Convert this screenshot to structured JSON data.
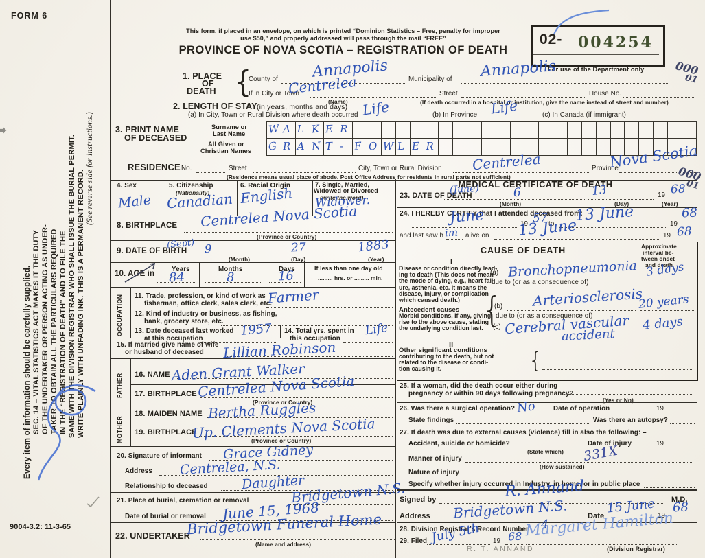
{
  "form": {
    "label": "FORM 6",
    "code": "9004-3.2: 11-3-65"
  },
  "icons": {
    "margin_arrow": "➡",
    "brace": "{",
    "check": "✓"
  },
  "header": {
    "notice1": "This form, if placed in an envelope, on which is printed “Dominion Statistics – Free, penalty for improper",
    "notice2": "use $50,” and properly addressed will pass through the mail “FREE”",
    "title": "PROVINCE OF NOVA SCOTIA – REGISTRATION OF DEATH",
    "dept_prefix": "02-",
    "dept_number": "004254",
    "dept_caption": "For use of the Department only"
  },
  "annotations": {
    "corner1a": "000",
    "corner1b": "01",
    "corner2a": "000",
    "corner2b": "01"
  },
  "sidebar": {
    "supplied": "Every item of information should be carefully supplied.",
    "lines": [
      "SEC. 14 – VITAL STATISTICS ACT MAKES IT THE DUTY",
      "OF THE UNDERTAKER OR PERSON ACTING AS UNDER-",
      "TAKER TO OBTAIN ALL THE PARTICULARS REQUIRED",
      "IN THE “REGISTRATION OF DEATH” AND TO FILE THE",
      "SAME WITH THE DIVISION REGISTRAR WHO SHALL ISSUE THE BURIAL PERMIT.",
      "WRITE PLAINLY WITH UNFADING INK. THIS IS A PERMANENT RECORD."
    ],
    "note": "(See reverse side for instructions.)"
  },
  "place": {
    "num": "1. PLACE",
    "of": "OF",
    "death": "DEATH",
    "county_label": "County of",
    "county": "Annapolis",
    "municipality_label": "Municipality of",
    "municipality": "Annapolis",
    "city_label": "If in City or Town",
    "city": "Centrelea",
    "name_sub": "(Name)",
    "street_label": "Street",
    "hospital_note": "(If death occurred in a hospital or institution, give the name instead of street and number)",
    "house_label": "House No."
  },
  "stay": {
    "title": "2. LENGTH OF STAY",
    "title_sub": "(in years, months and days)",
    "a_label": "(a) In City, Town or Rural Division where death occurred",
    "a": "Life",
    "b_label": "(b) In Province",
    "b": "Life",
    "c_label": "(c) In Canada (if immigrant)"
  },
  "print_name": {
    "title1": "3. PRINT NAME",
    "title2": "OF DECEASED",
    "surname_label1": "Surname or",
    "surname_label2": "Last Name",
    "given_label1": "All Given or",
    "given_label2": "Christian Names",
    "surname": "WALKER",
    "given": "GRANT-FOWLER"
  },
  "residence": {
    "title": "RESIDENCE",
    "no_label": "No.",
    "street_label": "Street",
    "city_label": "City, Town or Rural Division",
    "city": "Centrelea",
    "province_label": "Province",
    "province": "Nova Scotia",
    "note": "(Residence means usual place of abode. Post Office Address for residents in rural parts not sufficient)"
  },
  "personal": {
    "sex_label": "4. Sex",
    "sex": "Male",
    "citizenship_label": "5. Citizenship",
    "citizenship_sub": "(Nationality)",
    "citizenship": "Canadian",
    "racial_label": "6. Racial Origin",
    "racial": "English",
    "marital_label1": "7. Single, Married,",
    "marital_label2": "Widowed or Divorced",
    "marital_sub": "(write the word)",
    "marital": "Widower.",
    "birthplace_label": "8. BIRTHPLACE",
    "birthplace": "Centrelea Nova Scotia",
    "prov_country": "(Province or Country)",
    "dob_label": "9. DATE OF BIRTH",
    "dob_month_hw": "(Sept)",
    "dob_month_num": "9",
    "dob_day": "27",
    "dob_year": "1883",
    "month_sub": "(Month)",
    "day_sub": "(Day)",
    "year_sub": "(Year)",
    "age_label": "10. AGE in",
    "years_label": "Years",
    "months_label": "Months",
    "days_label": "Days",
    "less_label": "If less than one day old",
    "hrs_min": "......... hrs. or ......... min.",
    "age_years": "84",
    "age_months": "8",
    "age_days": "16"
  },
  "occupation": {
    "side": "OCCUPATION",
    "q11a": "11. Trade, profession, or kind of work as",
    "q11b": "fisherman, office clerk, sales clerk, etc.",
    "trade": "Farmer",
    "q12a": "12. Kind of industry or business, as fishing,",
    "q12b": "bank, grocery store, etc.",
    "q13a": "13. Date deceased last worked",
    "q13b": "at this occupation",
    "last_worked": "1957",
    "q14a": "14. Total yrs. spent in",
    "q14b": "this occupation",
    "total": "Life",
    "q15a": "15. If married give name of wife",
    "q15b": "or husband of deceased",
    "spouse": "Lillian Robinson"
  },
  "father": {
    "side": "FATHER",
    "name_label": "16. NAME",
    "name": "Aden Grant Walker",
    "bp_label": "17. BIRTHPLACE",
    "bp": "Centrelea Nova Scotia",
    "sub": "(Province or Country)"
  },
  "mother": {
    "side": "MOTHER",
    "maiden_label": "18. MAIDEN NAME",
    "maiden": "Bertha Ruggles",
    "bp_label": "19. BIRTHPLACE",
    "bp": "Up. Clements Nova Scotia",
    "sub": "(Province or Country)"
  },
  "informant": {
    "label": "20. Signature of informant",
    "name": "Grace Gidney",
    "address_label": "Address",
    "address": "Centrelea, N.S.",
    "rel_label": "Relationship to deceased",
    "rel": "Daughter"
  },
  "burial": {
    "label": "21. Place of burial, cremation or removal",
    "place": "Bridgetown N.S.",
    "date_label": "Date of burial or removal",
    "date": "June 15, 1968"
  },
  "undertaker": {
    "label": "22. UNDERTAKER",
    "name": "Bridgetown Funeral Home",
    "sub": "(Name and address)"
  },
  "medical": {
    "title": "MEDICAL CERTIFICATE OF DEATH",
    "q23": {
      "label": "23. DATE OF DEATH",
      "month_hw": "(June)",
      "month": "6",
      "day": "13",
      "year_prefix": "19",
      "year": "68",
      "month_sub": "(Month)",
      "day_sub": "(Day)",
      "year_sub": "(Year)"
    },
    "q24": {
      "label": "24. I HEREBY CERTIFY that I attended deceased from:",
      "from": "June",
      "from_year_prefix": "19",
      "from_year": "57",
      "to_word": "to",
      "to": "13 June",
      "to_year_prefix": "19",
      "to_year": "68",
      "last1": "and last saw h",
      "him": "im",
      "last2": "alive on",
      "last_date": "13 June",
      "last_year_prefix": "19",
      "last_year": "68"
    },
    "cause": {
      "title": "CAUSE OF DEATH",
      "interval_lines": [
        "Approximate",
        "interval be-",
        "tween onset",
        "and death"
      ],
      "sec1": "I",
      "lead_lines": [
        "Disease or condition directly lead-",
        "ing to death (This does not mean",
        "the mode of dying, e.g., heart fail-",
        "ure, asthenia, etc. It means the",
        "disease, injury, or complication",
        "which caused death.)"
      ],
      "antecedent_title": "Antecedent causes",
      "antecedent_lines": [
        "Morbid conditions, if any, giving",
        "rise to the above cause, stating",
        "the underlying condition last."
      ],
      "a_prefix": "(a)",
      "a": "Bronchopneumonia",
      "a_interval": "3 days",
      "due_to": "due to (or as a consequence of)",
      "b_prefix": "(b)",
      "b": "Arteriosclerosis",
      "b_interval": "20 years",
      "c_prefix": "(c)",
      "c1": "Cerebral vascular",
      "c2": "accident",
      "c_interval": "4 days",
      "sec2": "II",
      "other_title": "Other significant conditions",
      "other_lines": [
        "contributing to the death, but not",
        "related to the disease or condi-",
        "tion causing it."
      ]
    },
    "q25": {
      "l1": "25. If a woman, did the death occur either during",
      "l2": "pregnancy or within 90 days following pregnancy?",
      "sub": "(Yes or No)"
    },
    "q26": {
      "l1": "26. Was there a surgical operation?",
      "answer": "No",
      "date_label": "Date of operation",
      "year": "19",
      "findings": "State findings",
      "autopsy": "Was there an autopsy?"
    },
    "q27": {
      "l1": "27. If death was due to external causes (violence) fill in also the following: –",
      "accident": "Accident, suicide or homicide?",
      "state_which": "(State which)",
      "injury_date": "Date of injury",
      "year": "19",
      "manner": "Manner of injury",
      "sustained": "(How sustained)",
      "code": "331X",
      "nature": "Nature of injury",
      "specify": "Specify whether injury occurred in Industry, in home, or in public place"
    },
    "signed": {
      "label": "Signed by",
      "signature": "R. Annand",
      "md": "M.D.",
      "address_label": "Address",
      "address": "Bridgetown N.S.",
      "date_label": "Date",
      "date": "15 June",
      "year_prefix": "19",
      "year": "68"
    },
    "q28": {
      "label": "28. Division Registrar's Record Number",
      "value": "4"
    },
    "q29": {
      "label": "29. Filed",
      "filed_date": "July 5th",
      "year_prefix": "19",
      "year": "68",
      "registrar": "Margaret Hamilton",
      "sub": "(Division Registrar)",
      "pencil": "R. T. ANNAND"
    }
  }
}
